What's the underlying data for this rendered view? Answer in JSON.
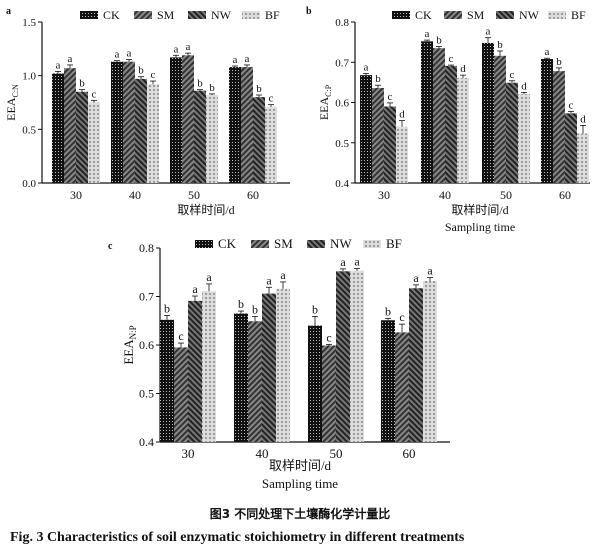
{
  "caption_cn": "图3   不同处理下土壤酶化学计量比",
  "caption_en": "Fig. 3    Characteristics of soil enzymatic stoichiometry in different treatments",
  "chart_data": [
    {
      "type": "bar",
      "panel": "a",
      "ylabel": "EEA",
      "ylabel_sub": "C:N",
      "xlabel": "取样时间/d",
      "xlabel2": "",
      "categories": [
        "30",
        "40",
        "50",
        "60"
      ],
      "ylim": [
        0,
        1.5
      ],
      "yticks": [
        "0.0",
        "0.5",
        "1.0",
        "1.5"
      ],
      "legend": "top",
      "series": [
        {
          "name": "CK",
          "values": [
            1.02,
            1.13,
            1.17,
            1.08
          ],
          "errors": [
            0.02,
            0.01,
            0.02,
            0.01
          ],
          "letters": [
            "a",
            "a",
            "a",
            "a"
          ]
        },
        {
          "name": "SM",
          "values": [
            1.07,
            1.13,
            1.19,
            1.08
          ],
          "errors": [
            0.03,
            0.02,
            0.02,
            0.02
          ],
          "letters": [
            "a",
            "a",
            "a",
            "a"
          ]
        },
        {
          "name": "NW",
          "values": [
            0.85,
            0.97,
            0.86,
            0.8
          ],
          "errors": [
            0.02,
            0.02,
            0.01,
            0.02
          ],
          "letters": [
            "b",
            "b",
            "b",
            "b"
          ]
        },
        {
          "name": "BF",
          "values": [
            0.75,
            0.92,
            0.82,
            0.71
          ],
          "errors": [
            0.02,
            0.03,
            0.01,
            0.02
          ],
          "letters": [
            "c",
            "c",
            "b",
            "c"
          ]
        }
      ]
    },
    {
      "type": "bar",
      "panel": "b",
      "ylabel": "EEA",
      "ylabel_sub": "C:P",
      "xlabel": "取样时间/d",
      "xlabel2": "Sampling time",
      "categories": [
        "30",
        "40",
        "50",
        "60"
      ],
      "ylim": [
        0.4,
        0.8
      ],
      "yticks": [
        "0.4",
        "0.5",
        "0.6",
        "0.7",
        "0.8"
      ],
      "legend": "top",
      "series": [
        {
          "name": "CK",
          "values": [
            0.668,
            0.752,
            0.748,
            0.708
          ],
          "errors": [
            0.004,
            0.003,
            0.013,
            0.002
          ],
          "letters": [
            "a",
            "a",
            "a",
            "a"
          ]
        },
        {
          "name": "SM",
          "values": [
            0.636,
            0.735,
            0.716,
            0.678
          ],
          "errors": [
            0.007,
            0.004,
            0.012,
            0.008
          ],
          "letters": [
            "b",
            "b",
            "b",
            "b"
          ]
        },
        {
          "name": "NW",
          "values": [
            0.59,
            0.691,
            0.649,
            0.573
          ],
          "errors": [
            0.009,
            0.002,
            0.005,
            0.005
          ],
          "letters": [
            "c",
            "c",
            "c",
            "c"
          ]
        },
        {
          "name": "BF",
          "values": [
            0.54,
            0.661,
            0.621,
            0.523
          ],
          "errors": [
            0.015,
            0.007,
            0.004,
            0.02
          ],
          "letters": [
            "d",
            "d",
            "d",
            "d"
          ]
        }
      ]
    },
    {
      "type": "bar",
      "panel": "c",
      "ylabel": "EEA",
      "ylabel_sub": "N:P",
      "xlabel": "取样时间/d",
      "xlabel2": "Sampling time",
      "categories": [
        "30",
        "40",
        "50",
        "60"
      ],
      "ylim": [
        0.4,
        0.8
      ],
      "yticks": [
        "0.4",
        "0.5",
        "0.6",
        "0.7",
        "0.8"
      ],
      "legend": "top",
      "series": [
        {
          "name": "CK",
          "values": [
            0.652,
            0.665,
            0.64,
            0.651
          ],
          "errors": [
            0.009,
            0.005,
            0.019,
            0.004
          ],
          "letters": [
            "b",
            "b",
            "b",
            "b"
          ]
        },
        {
          "name": "SM",
          "values": [
            0.595,
            0.649,
            0.599,
            0.626
          ],
          "errors": [
            0.009,
            0.01,
            0.002,
            0.017
          ],
          "letters": [
            "c",
            "b",
            "c",
            "c"
          ]
        },
        {
          "name": "NW",
          "values": [
            0.691,
            0.706,
            0.752,
            0.717
          ],
          "errors": [
            0.01,
            0.013,
            0.005,
            0.007
          ],
          "letters": [
            "a",
            "a",
            "a",
            "a"
          ]
        },
        {
          "name": "BF",
          "values": [
            0.711,
            0.716,
            0.753,
            0.732
          ],
          "errors": [
            0.015,
            0.014,
            0.005,
            0.007
          ],
          "letters": [
            "a",
            "a",
            "a",
            "a"
          ]
        }
      ]
    }
  ]
}
